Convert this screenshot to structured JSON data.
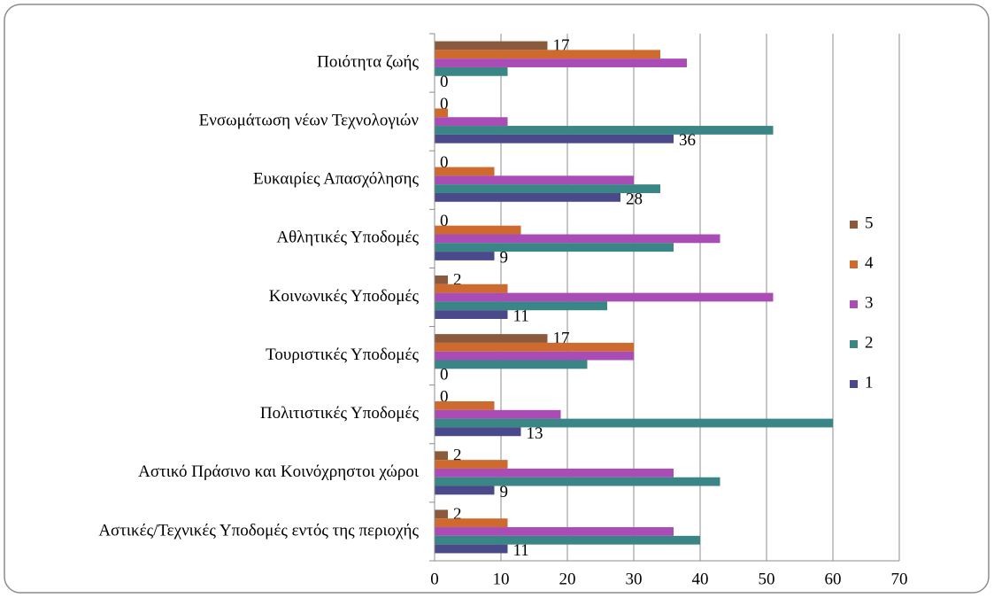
{
  "chart_data": {
    "type": "bar",
    "orientation": "horizontal",
    "categories": [
      "Ποιότητα ζωής",
      "Ενσωμάτωση νέων Τεχνολογιών ",
      "Ευκαιρίες Απασχόλησης",
      "Αθλητικές Υποδομές",
      "Κοινωνικές Υποδομές ",
      "Τουριστικές Υποδομές",
      "Πολιτιστικές Υποδομές ",
      "Αστικό Πράσινο και Κοινόχρηστοι χώροι",
      "Αστικές/Τεχνικές Υποδομές εντός της περιοχής"
    ],
    "series": [
      {
        "name": "5",
        "color": "#8b5a3c",
        "data_labels": true,
        "values": [
          17,
          0,
          0,
          0,
          2,
          17,
          0,
          2,
          2
        ]
      },
      {
        "name": "4",
        "color": "#cf6a2e",
        "data_labels": false,
        "values": [
          34,
          2,
          9,
          13,
          11,
          30,
          9,
          11,
          11
        ]
      },
      {
        "name": "3",
        "color": "#a94cb5",
        "data_labels": false,
        "values": [
          38,
          11,
          30,
          43,
          51,
          30,
          19,
          36,
          36
        ]
      },
      {
        "name": "2",
        "color": "#3a8585",
        "data_labels": false,
        "values": [
          11,
          51,
          34,
          36,
          26,
          23,
          60,
          43,
          40
        ]
      },
      {
        "name": "1",
        "color": "#4a4a8a",
        "data_labels": true,
        "values": [
          0,
          36,
          28,
          9,
          11,
          0,
          13,
          9,
          11
        ]
      }
    ],
    "xlim": [
      0,
      70
    ],
    "xticks": [
      0,
      10,
      20,
      30,
      40,
      50,
      60,
      70
    ],
    "grid": true,
    "legend": "right"
  }
}
